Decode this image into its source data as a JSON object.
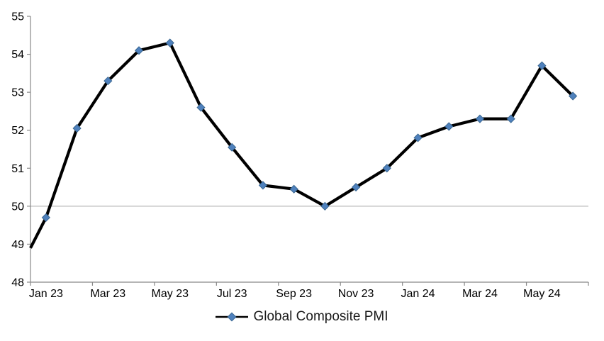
{
  "chart_data": {
    "type": "line",
    "title": "",
    "legend": {
      "label": "Global Composite PMI",
      "position": "bottom-center",
      "marker": "diamond-on-line"
    },
    "series": [
      {
        "name": "Global Composite PMI",
        "categories": [
          "Jan 23",
          "Feb 23",
          "Mar 23",
          "Apr 23",
          "May 23",
          "Jun 23",
          "Jul 23",
          "Aug 23",
          "Sep 23",
          "Oct 23",
          "Nov 23",
          "Dec 23",
          "Jan 24",
          "Feb 24",
          "Mar 24",
          "Apr 24",
          "May 24",
          "Jun 24"
        ],
        "values": [
          49.7,
          52.05,
          53.3,
          54.1,
          54.3,
          52.6,
          51.55,
          50.55,
          50.45,
          50.0,
          50.5,
          51.0,
          51.8,
          52.1,
          52.3,
          52.3,
          53.7,
          52.9
        ],
        "leading_edge_value_at_left_axis": 48.9,
        "marker": "diamond"
      }
    ],
    "x_tick_labels": [
      "Jan 23",
      "Mar 23",
      "May 23",
      "Jul 23",
      "Sep 23",
      "Nov 23",
      "Jan 24",
      "Mar 24",
      "May 24"
    ],
    "y_ticks": [
      48,
      49,
      50,
      51,
      52,
      53,
      54,
      55
    ],
    "ylim": [
      48,
      55
    ],
    "y_gridlines": [
      50
    ],
    "layout_hints": {
      "grid": "single horizontal gridline at 50 only",
      "x_axis_tick_marks": "every 2 categories, labels centered between ticks",
      "legend_position": "bottom-center"
    },
    "colors": {
      "line": "#000000",
      "marker_fill": "#4F81BD",
      "marker_stroke": "#3A6791",
      "axis": "#898989",
      "gridline": "#A6A6A6",
      "text": "#000000"
    }
  }
}
